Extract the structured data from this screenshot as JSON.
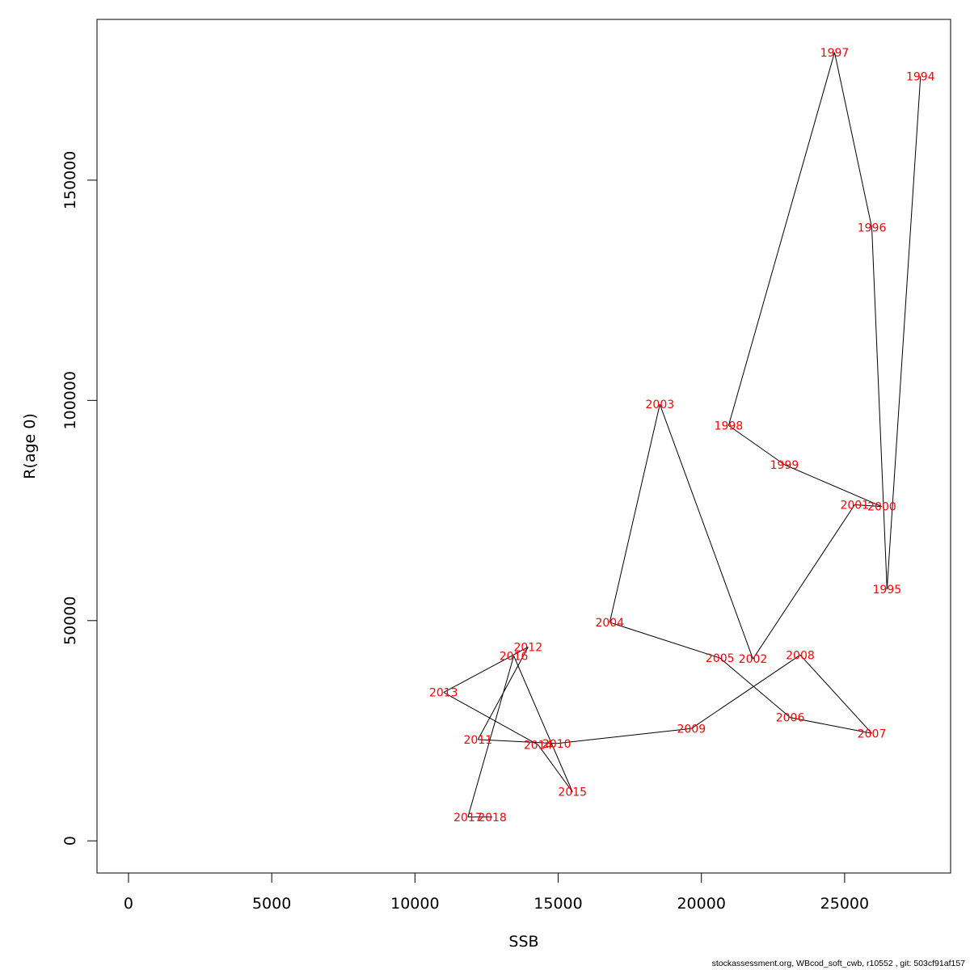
{
  "footer_text": "stockassessment.org, WBcod_soft_cwb, r10552 , git: 503cf91af157",
  "chart_data": {
    "type": "scatter",
    "connected": true,
    "xlabel": "SSB",
    "ylabel": "R(age 0)",
    "xlim": [
      -1100,
      28700
    ],
    "ylim": [
      -7300,
      186500
    ],
    "xticks": [
      0,
      5000,
      10000,
      15000,
      20000,
      25000
    ],
    "yticks": [
      0,
      50000,
      100000,
      150000
    ],
    "line_color": "#000000",
    "label_color": "#ff0000",
    "points": [
      {
        "year": "1994",
        "x": 27650,
        "y": 173600
      },
      {
        "year": "1995",
        "x": 26480,
        "y": 57100
      },
      {
        "year": "1996",
        "x": 25950,
        "y": 139200
      },
      {
        "year": "1997",
        "x": 24650,
        "y": 179000
      },
      {
        "year": "1998",
        "x": 20950,
        "y": 94300
      },
      {
        "year": "1999",
        "x": 22900,
        "y": 85400
      },
      {
        "year": "2000",
        "x": 26300,
        "y": 75900
      },
      {
        "year": "2001",
        "x": 25350,
        "y": 76300
      },
      {
        "year": "2002",
        "x": 21800,
        "y": 41300
      },
      {
        "year": "2003",
        "x": 18550,
        "y": 99100
      },
      {
        "year": "2004",
        "x": 16800,
        "y": 49600
      },
      {
        "year": "2005",
        "x": 20650,
        "y": 41500
      },
      {
        "year": "2006",
        "x": 23100,
        "y": 28000
      },
      {
        "year": "2007",
        "x": 25950,
        "y": 24400
      },
      {
        "year": "2008",
        "x": 23450,
        "y": 42200
      },
      {
        "year": "2009",
        "x": 19650,
        "y": 25500
      },
      {
        "year": "2010",
        "x": 14950,
        "y": 22100
      },
      {
        "year": "2011",
        "x": 12200,
        "y": 23000
      },
      {
        "year": "2012",
        "x": 13950,
        "y": 44000
      },
      {
        "year": "2013",
        "x": 11000,
        "y": 33700
      },
      {
        "year": "2014",
        "x": 14300,
        "y": 21800
      },
      {
        "year": "2015",
        "x": 15500,
        "y": 11100
      },
      {
        "year": "2016",
        "x": 13450,
        "y": 42000
      },
      {
        "year": "2017",
        "x": 11850,
        "y": 5400
      },
      {
        "year": "2018",
        "x": 12700,
        "y": 5400
      }
    ]
  }
}
